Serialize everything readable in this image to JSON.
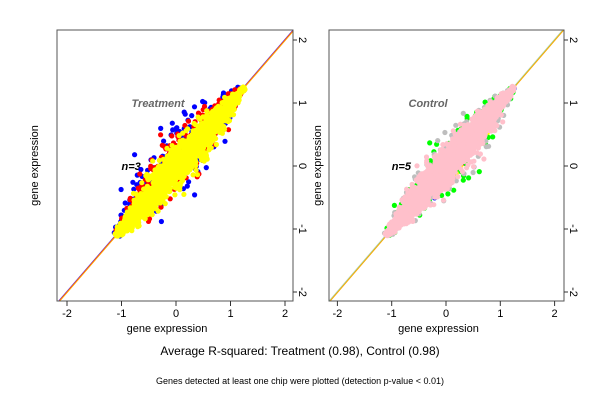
{
  "chart_data": [
    {
      "type": "scatter",
      "panel_label": "Treatment",
      "annotation": "n=3",
      "xlabel": "gene expression",
      "ylabel": "gene expression",
      "xlim": [
        -2.15,
        2.15
      ],
      "ylim": [
        -2.15,
        2.15
      ],
      "xticks": [
        "-2",
        "-1",
        "0",
        "1",
        "2"
      ],
      "yticks": [
        "-2",
        "-1",
        "0",
        "1",
        "2"
      ],
      "grid": false,
      "series_colors": [
        "#0000ff",
        "#ff0000",
        "#ffff00"
      ],
      "identity_line_colors": [
        "#4040ff",
        "#ff2020",
        "#ffa500"
      ]
    },
    {
      "type": "scatter",
      "panel_label": "Control",
      "annotation": "n=5",
      "xlabel": "gene expression",
      "ylabel": "gene expression",
      "xlim": [
        -2.15,
        2.15
      ],
      "ylim": [
        -2.15,
        2.15
      ],
      "xticks": [
        "-2",
        "-1",
        "0",
        "1",
        "2"
      ],
      "yticks": [
        "-2",
        "-1",
        "0",
        "1",
        "2"
      ],
      "grid": false,
      "series_colors": [
        "#0000ff",
        "#ff0000",
        "#ffff00",
        "#00ff00",
        "#bebebe",
        "#ffc0cb"
      ],
      "identity_line_colors": [
        "#bebebe",
        "#90ee90",
        "#ffa500"
      ]
    }
  ],
  "caption": "Average R-squared: Treatment (0.98), Control (0.98)",
  "footnote": "Genes detected at least one chip were plotted (detection p-value < 0.01)"
}
